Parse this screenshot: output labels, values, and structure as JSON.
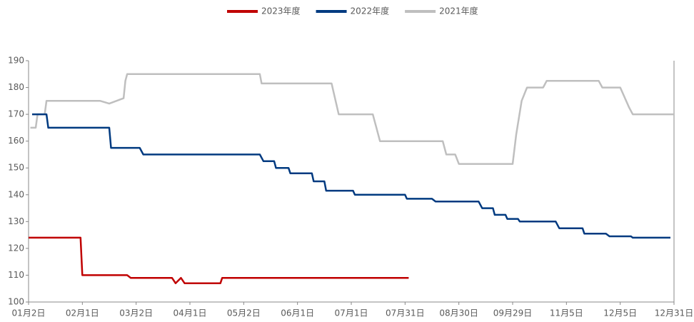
{
  "chart_data": {
    "type": "line",
    "xlim": [
      0,
      360
    ],
    "xticks": [
      {
        "value": 0,
        "label": "01月2日"
      },
      {
        "value": 30,
        "label": "02月1日"
      },
      {
        "value": 60,
        "label": "03月2日"
      },
      {
        "value": 90,
        "label": "04月1日"
      },
      {
        "value": 120,
        "label": "05月2日"
      },
      {
        "value": 150,
        "label": "06月1日"
      },
      {
        "value": 180,
        "label": "07月1日"
      },
      {
        "value": 210,
        "label": "07月31日"
      },
      {
        "value": 240,
        "label": "08月30日"
      },
      {
        "value": 270,
        "label": "09月29日"
      },
      {
        "value": 300,
        "label": "11月5日"
      },
      {
        "value": 330,
        "label": "12月5日"
      },
      {
        "value": 360,
        "label": "12月31日"
      }
    ],
    "ylim": [
      100,
      190
    ],
    "yticks": [
      100,
      110,
      120,
      130,
      140,
      150,
      160,
      170,
      180,
      190
    ],
    "legend": "top",
    "series": [
      {
        "name": "2023年度",
        "color": "#c00000",
        "x": [
          0,
          29,
          30,
          55,
          57,
          80,
          82,
          85,
          87,
          107,
          108,
          212
        ],
        "values": [
          124,
          124,
          110,
          110,
          109,
          109,
          107,
          109,
          107,
          107,
          109,
          109
        ]
      },
      {
        "name": "2022年度",
        "color": "#003a80",
        "x": [
          2,
          10,
          11,
          45,
          46,
          62,
          64,
          129,
          131,
          137,
          138,
          145,
          146,
          158,
          159,
          165,
          166,
          181,
          182,
          210,
          211,
          225,
          227,
          251,
          253,
          259,
          260,
          266,
          267,
          273,
          274,
          294,
          296,
          309,
          310,
          322,
          324,
          336,
          337,
          358
        ],
        "values": [
          170,
          170,
          165,
          165,
          157.5,
          157.5,
          155,
          155,
          152.5,
          152.5,
          150,
          150,
          148,
          148,
          145,
          145,
          141.5,
          141.5,
          140,
          140,
          138.5,
          138.5,
          137.5,
          137.5,
          135,
          135,
          132.5,
          132.5,
          131,
          131,
          130,
          130,
          127.5,
          127.5,
          125.5,
          125.5,
          124.5,
          124.5,
          124,
          124
        ]
      },
      {
        "name": "2021年度",
        "color": "#bfbfbf",
        "x": [
          1,
          4,
          5,
          9,
          10,
          40,
          45,
          53,
          54,
          55,
          129,
          130,
          169,
          173,
          192,
          194,
          196,
          231,
          233,
          238,
          240,
          270,
          272,
          275,
          278,
          287,
          289,
          318,
          320,
          330,
          335,
          337,
          360
        ],
        "values": [
          165,
          165,
          170,
          170,
          175,
          175,
          174,
          176,
          182.5,
          185,
          185,
          181.5,
          181.5,
          170,
          170,
          165,
          160,
          160,
          155,
          155,
          151.5,
          151.5,
          162.5,
          175,
          180,
          180,
          182.5,
          182.5,
          180,
          180,
          172.5,
          170,
          170
        ]
      }
    ]
  }
}
